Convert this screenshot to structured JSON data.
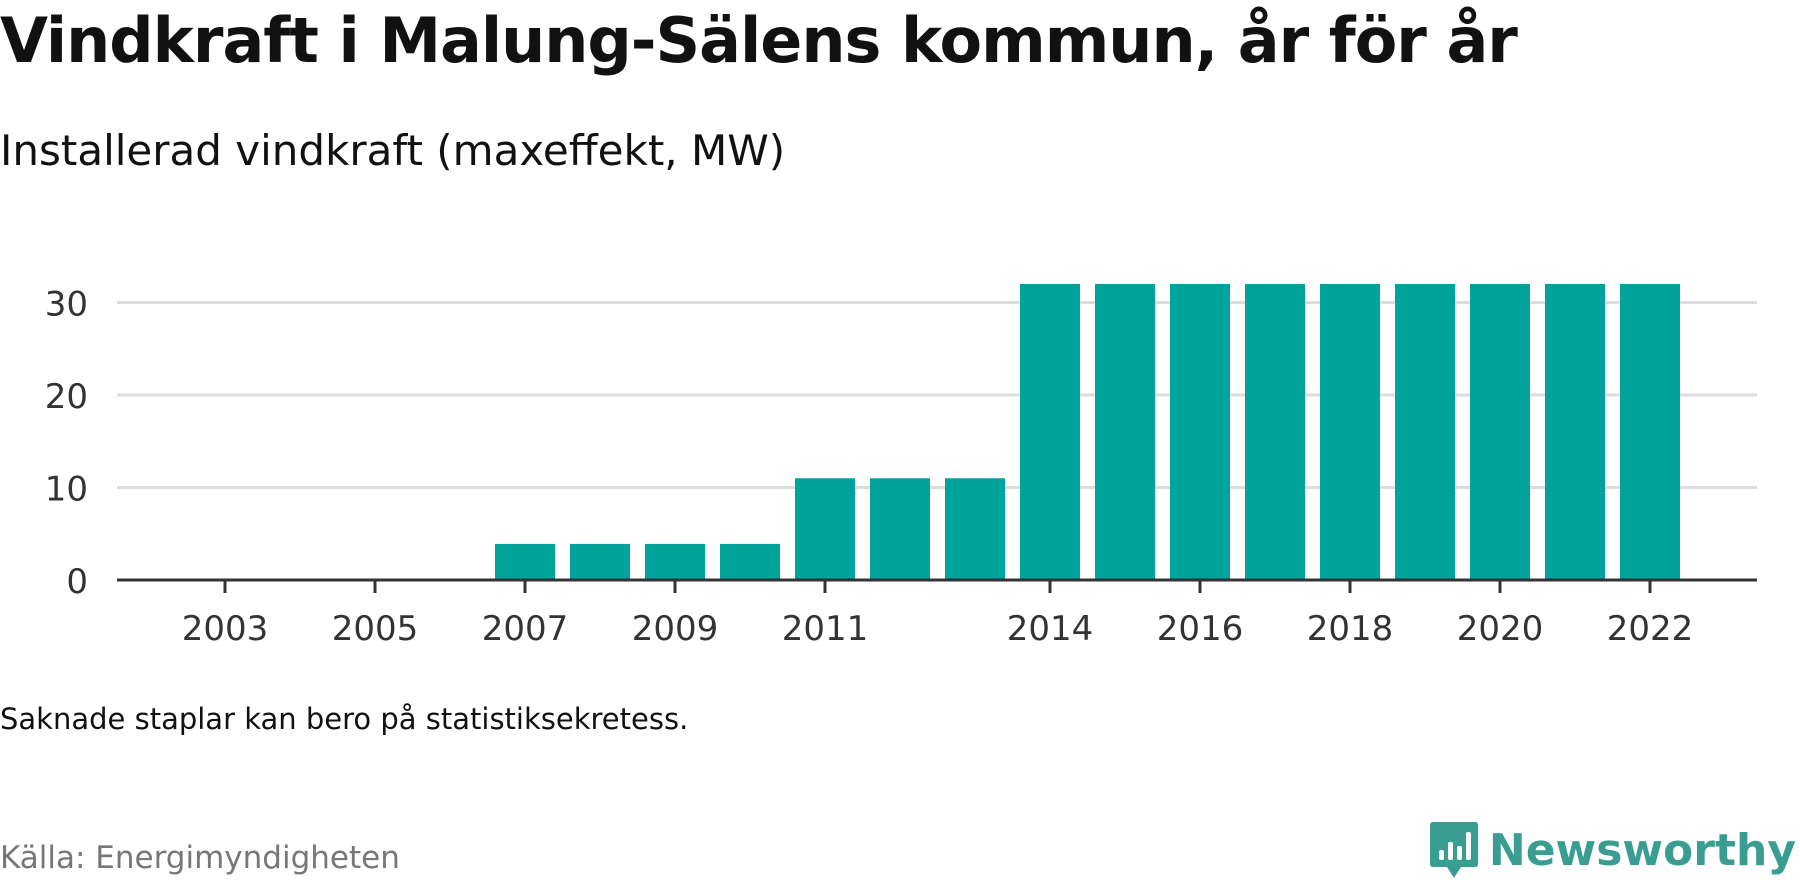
{
  "title": "Vindkraft i Malung-Sälens kommun, år för år",
  "subtitle": "Installerad vindkraft (maxeffekt, MW)",
  "note": "Saknade staplar kan bero på statistiksekretess.",
  "source": "Källa: Energimyndigheten",
  "brand": {
    "name": "Newsworthy",
    "icon": "newsworthy-logo-icon",
    "color": "#3a9d91"
  },
  "colors": {
    "bar": "#00a39a",
    "grid": "#dddddd",
    "axis": "#333333"
  },
  "chart_data": {
    "type": "bar",
    "categories": [
      "2003",
      "2004",
      "2005",
      "2006",
      "2007",
      "2008",
      "2009",
      "2010",
      "2011",
      "2012",
      "2013",
      "2014",
      "2015",
      "2016",
      "2017",
      "2018",
      "2019",
      "2020",
      "2021",
      "2022"
    ],
    "values": [
      0,
      0,
      0,
      0,
      3.9,
      3.9,
      3.9,
      3.9,
      11,
      11,
      11,
      32,
      32,
      32,
      32,
      32,
      32,
      32,
      32,
      32
    ],
    "x_tick_labels": [
      "2003",
      "2005",
      "2007",
      "2009",
      "2011",
      "2014",
      "2016",
      "2018",
      "2020",
      "2022"
    ],
    "y_ticks": [
      0,
      10,
      20,
      30
    ],
    "ylim": [
      0,
      32
    ],
    "grid": true,
    "legend": "none",
    "title": "Vindkraft i Malung-Sälens kommun, år för år",
    "subtitle": "Installerad vindkraft (maxeffekt, MW)"
  }
}
